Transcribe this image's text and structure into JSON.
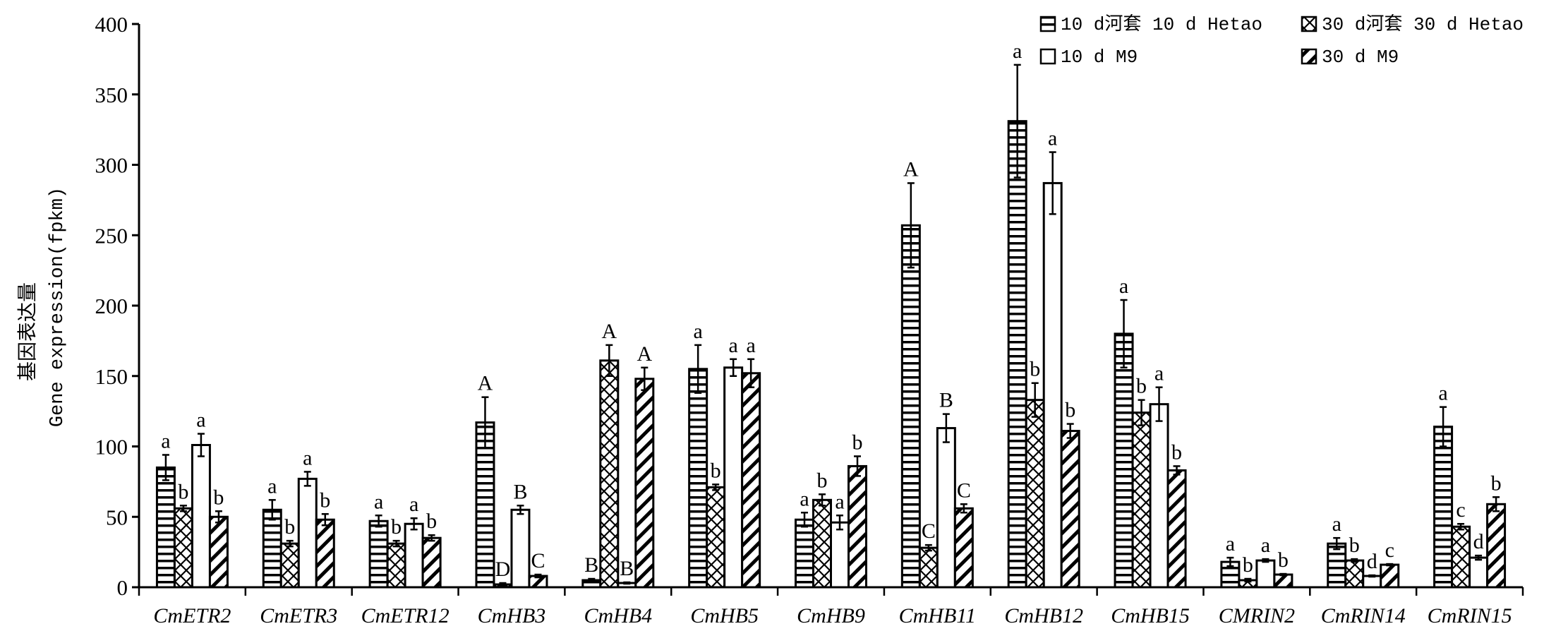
{
  "chart_data": {
    "type": "bar",
    "title": "",
    "xlabel": "",
    "ylabel_cn": "基因表达量",
    "ylabel": "Gene expression(fpkm)",
    "ylim": [
      0,
      400
    ],
    "yticks": [
      0,
      50,
      100,
      150,
      200,
      250,
      300,
      350,
      400
    ],
    "grid": false,
    "legend_position": "top-right",
    "categories": [
      "CmETR2",
      "CmETR3",
      "CmETR12",
      "CmHB3",
      "CmHB4",
      "CmHB5",
      "CmHB9",
      "CmHB11",
      "CmHB12",
      "CmHB15",
      "CMRIN2",
      "CmRIN14",
      "CmRIN15"
    ],
    "series": [
      {
        "name": "10 d河套 10 d Hetao",
        "pattern": "horizontal",
        "values": [
          85,
          55,
          47,
          117,
          5,
          155,
          48,
          257,
          331,
          180,
          18,
          31,
          114
        ],
        "errors": [
          9,
          7,
          4,
          18,
          1,
          17,
          5,
          30,
          40,
          24,
          3,
          4,
          14
        ],
        "letters": [
          "a",
          "a",
          "a",
          "A",
          "B",
          "a",
          "a",
          "A",
          "a",
          "a",
          "a",
          "a",
          "a"
        ]
      },
      {
        "name": "30 d河套 30 d Hetao",
        "pattern": "crosshatch",
        "values": [
          56,
          31,
          31,
          2,
          161,
          71,
          62,
          28,
          133,
          124,
          5,
          19,
          43
        ],
        "errors": [
          2,
          2,
          2,
          1,
          11,
          2,
          4,
          2,
          12,
          9,
          1,
          1,
          2
        ],
        "letters": [
          "b",
          "b",
          "b",
          "D",
          "A",
          "b",
          "b",
          "C",
          "b",
          "b",
          "b",
          "b",
          "c"
        ]
      },
      {
        "name": "10 d M9",
        "pattern": "empty",
        "values": [
          101,
          77,
          45,
          55,
          3,
          156,
          46,
          113,
          287,
          130,
          19,
          8,
          21
        ],
        "errors": [
          8,
          5,
          4,
          3,
          0.5,
          6,
          5,
          10,
          22,
          12,
          1,
          0.5,
          1.5
        ],
        "letters": [
          "a",
          "a",
          "a",
          "B",
          "B",
          "a",
          "a",
          "B",
          "a",
          "a",
          "a",
          "d",
          "d"
        ]
      },
      {
        "name": "30 d M9",
        "pattern": "diagonal",
        "values": [
          50,
          48,
          35,
          8,
          148,
          152,
          86,
          56,
          111,
          83,
          9,
          16,
          59
        ],
        "errors": [
          4,
          4,
          2,
          1,
          8,
          10,
          7,
          3,
          5,
          3,
          0.5,
          0.5,
          5
        ],
        "letters": [
          "b",
          "b",
          "b",
          "C",
          "A",
          "a",
          "b",
          "C",
          "b",
          "b",
          "b",
          "c",
          "b"
        ]
      }
    ]
  }
}
